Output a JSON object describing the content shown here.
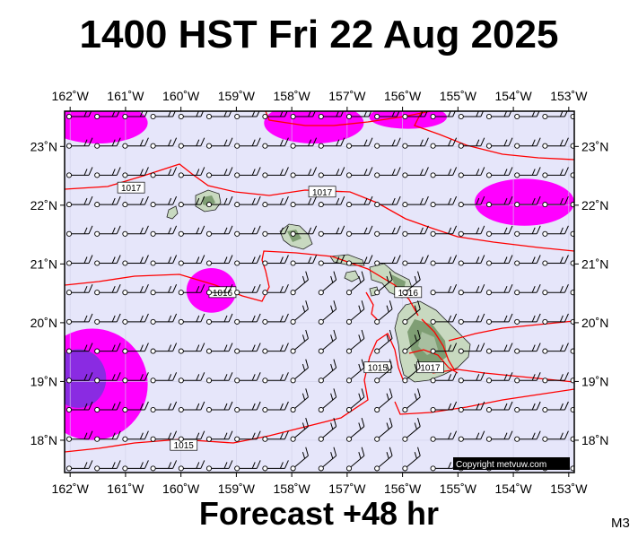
{
  "title": "1400 HST Fri 22 Aug 2025",
  "subtitle": "Forecast +48 hr",
  "model_tag": "M3",
  "copyright": "Copyright metvuw.com",
  "map": {
    "lon_labels": [
      "162˚W",
      "161˚W",
      "160˚W",
      "159˚W",
      "158˚W",
      "157˚W",
      "156˚W",
      "155˚W",
      "154˚W",
      "153˚W"
    ],
    "lat_labels": [
      "23˚N",
      "22˚N",
      "21˚N",
      "20˚N",
      "19˚N",
      "18˚N"
    ],
    "lon_values": [
      -162,
      -161,
      -160,
      -159,
      -158,
      -157,
      -156,
      -155,
      -154,
      -153
    ],
    "lat_values": [
      23,
      22,
      21,
      20,
      19,
      18
    ],
    "lon_range": [
      -162.1,
      -152.9
    ],
    "lat_range": [
      17.45,
      23.6
    ],
    "isobar_labels": [
      {
        "text": "1017",
        "lon": -160.9,
        "lat": 22.3
      },
      {
        "text": "1017",
        "lon": -157.45,
        "lat": 22.23
      },
      {
        "text": "1016",
        "lon": -159.25,
        "lat": 20.52
      },
      {
        "text": "1016",
        "lon": -155.9,
        "lat": 20.52
      },
      {
        "text": "1015",
        "lon": -156.45,
        "lat": 19.24
      },
      {
        "text": "1017",
        "lon": -155.5,
        "lat": 19.24
      },
      {
        "text": "1015",
        "lon": -159.95,
        "lat": 17.92
      }
    ],
    "rain_zones": [
      {
        "lon": -161.5,
        "lat": 23.4,
        "rlon": 0.9,
        "rlat": 0.35,
        "level": 1
      },
      {
        "lon": -157.6,
        "lat": 23.4,
        "rlon": 0.9,
        "rlat": 0.35,
        "level": 1
      },
      {
        "lon": -155.9,
        "lat": 23.5,
        "rlon": 0.7,
        "rlat": 0.2,
        "level": 1
      },
      {
        "lon": -153.8,
        "lat": 22.05,
        "rlon": 0.9,
        "rlat": 0.4,
        "level": 1
      },
      {
        "lon": -159.45,
        "lat": 20.55,
        "rlon": 0.45,
        "rlat": 0.38,
        "level": 1
      },
      {
        "lon": -161.6,
        "lat": 18.95,
        "rlon": 1.0,
        "rlat": 0.95,
        "level": 1
      },
      {
        "lon": -161.85,
        "lat": 19.05,
        "rlon": 0.5,
        "rlat": 0.5,
        "level": 2
      }
    ],
    "colors": {
      "background": "#e6e6fa",
      "rain_light": "#ff00ff",
      "rain_heavy": "#8a2be2",
      "isobar": "#ff0000",
      "land": "#c8d9c0",
      "land_high": "#7f9e74"
    }
  }
}
